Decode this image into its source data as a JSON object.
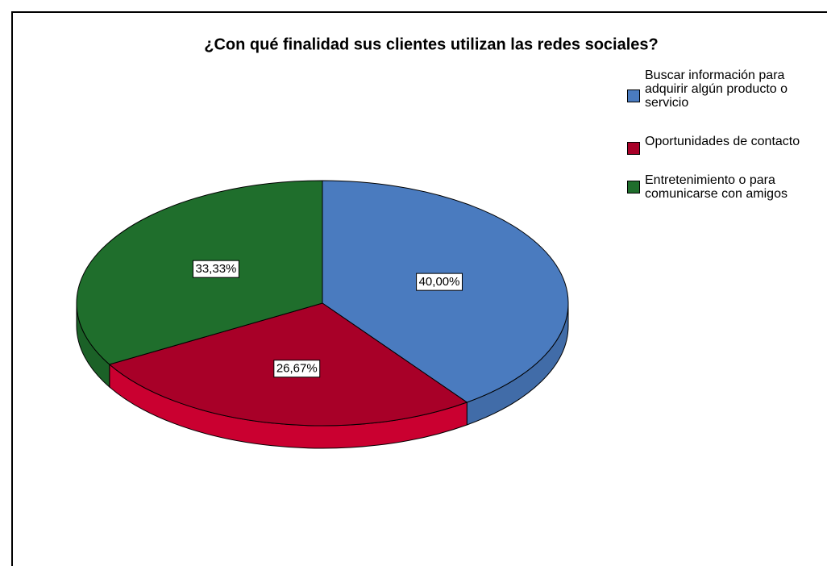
{
  "chart_data": {
    "type": "pie",
    "title": "¿Con qué finalidad sus clientes utilizan las redes sociales?",
    "categories": [
      "Buscar información para adquirir algún producto o servicio",
      "Oportunidades de contacto",
      "Entretenimiento o para comunicarse con amigos"
    ],
    "values": [
      40.0,
      26.67,
      33.33
    ],
    "value_labels": [
      "40,00%",
      "26,67%",
      "33,33%"
    ],
    "colors": [
      "#4a7bbf",
      "#a80028",
      "#1f6e2c"
    ],
    "legend": "right"
  }
}
